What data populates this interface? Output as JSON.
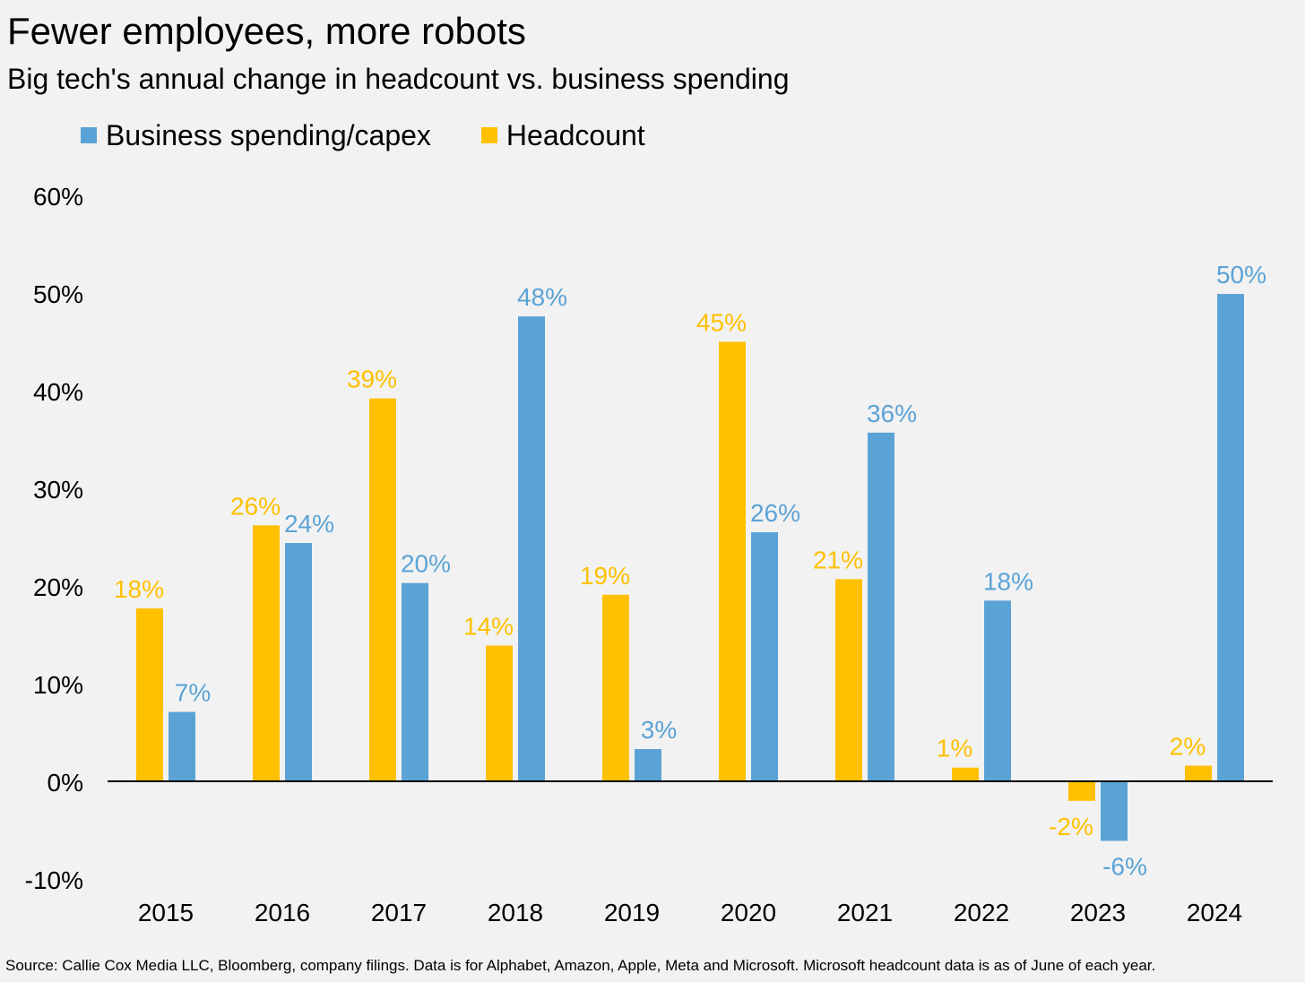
{
  "title": "Fewer employees, more robots",
  "subtitle": "Big tech's annual change in headcount vs. business spending",
  "source": "Source: Callie Cox Media LLC, Bloomberg, company filings. Data is for Alphabet, Amazon, Apple, Meta and Microsoft. Microsoft headcount data is as of June of each year.",
  "colors": {
    "headcount": "#ffc000",
    "capex": "#5ba3d6",
    "axis": "#000000",
    "background": "#f2f2f2"
  },
  "legend": [
    {
      "name": "Business spending/capex",
      "color": "#5ba3d6"
    },
    {
      "name": "Headcount",
      "color": "#ffc000"
    }
  ],
  "chart_data": {
    "type": "bar",
    "title": "Fewer employees, more robots",
    "subtitle": "Big tech's annual change in headcount vs. business spending",
    "xlabel": "",
    "ylabel": "",
    "categories": [
      "2015",
      "2016",
      "2017",
      "2018",
      "2019",
      "2020",
      "2021",
      "2022",
      "2023",
      "2024"
    ],
    "series": [
      {
        "name": "Headcount",
        "color": "#ffc000",
        "values": [
          17.7,
          26.2,
          39.2,
          13.9,
          19.1,
          45.0,
          20.7,
          1.4,
          -2.0,
          1.6
        ],
        "labels": [
          "18%",
          "26%",
          "39%",
          "14%",
          "19%",
          "45%",
          "21%",
          "1%",
          "-2%",
          "2%"
        ]
      },
      {
        "name": "Business spending/capex",
        "color": "#5ba3d6",
        "values": [
          7.1,
          24.4,
          20.3,
          47.6,
          3.3,
          25.5,
          35.7,
          18.5,
          -6.1,
          49.9
        ],
        "labels": [
          "7%",
          "24%",
          "20%",
          "48%",
          "3%",
          "26%",
          "36%",
          "18%",
          "-6%",
          "50%"
        ]
      }
    ],
    "ylim": [
      -10,
      60
    ],
    "yticks": [
      "-10%",
      "0%",
      "10%",
      "20%",
      "30%",
      "40%",
      "50%",
      "60%"
    ],
    "legend_position": "top-left",
    "grid": false
  }
}
